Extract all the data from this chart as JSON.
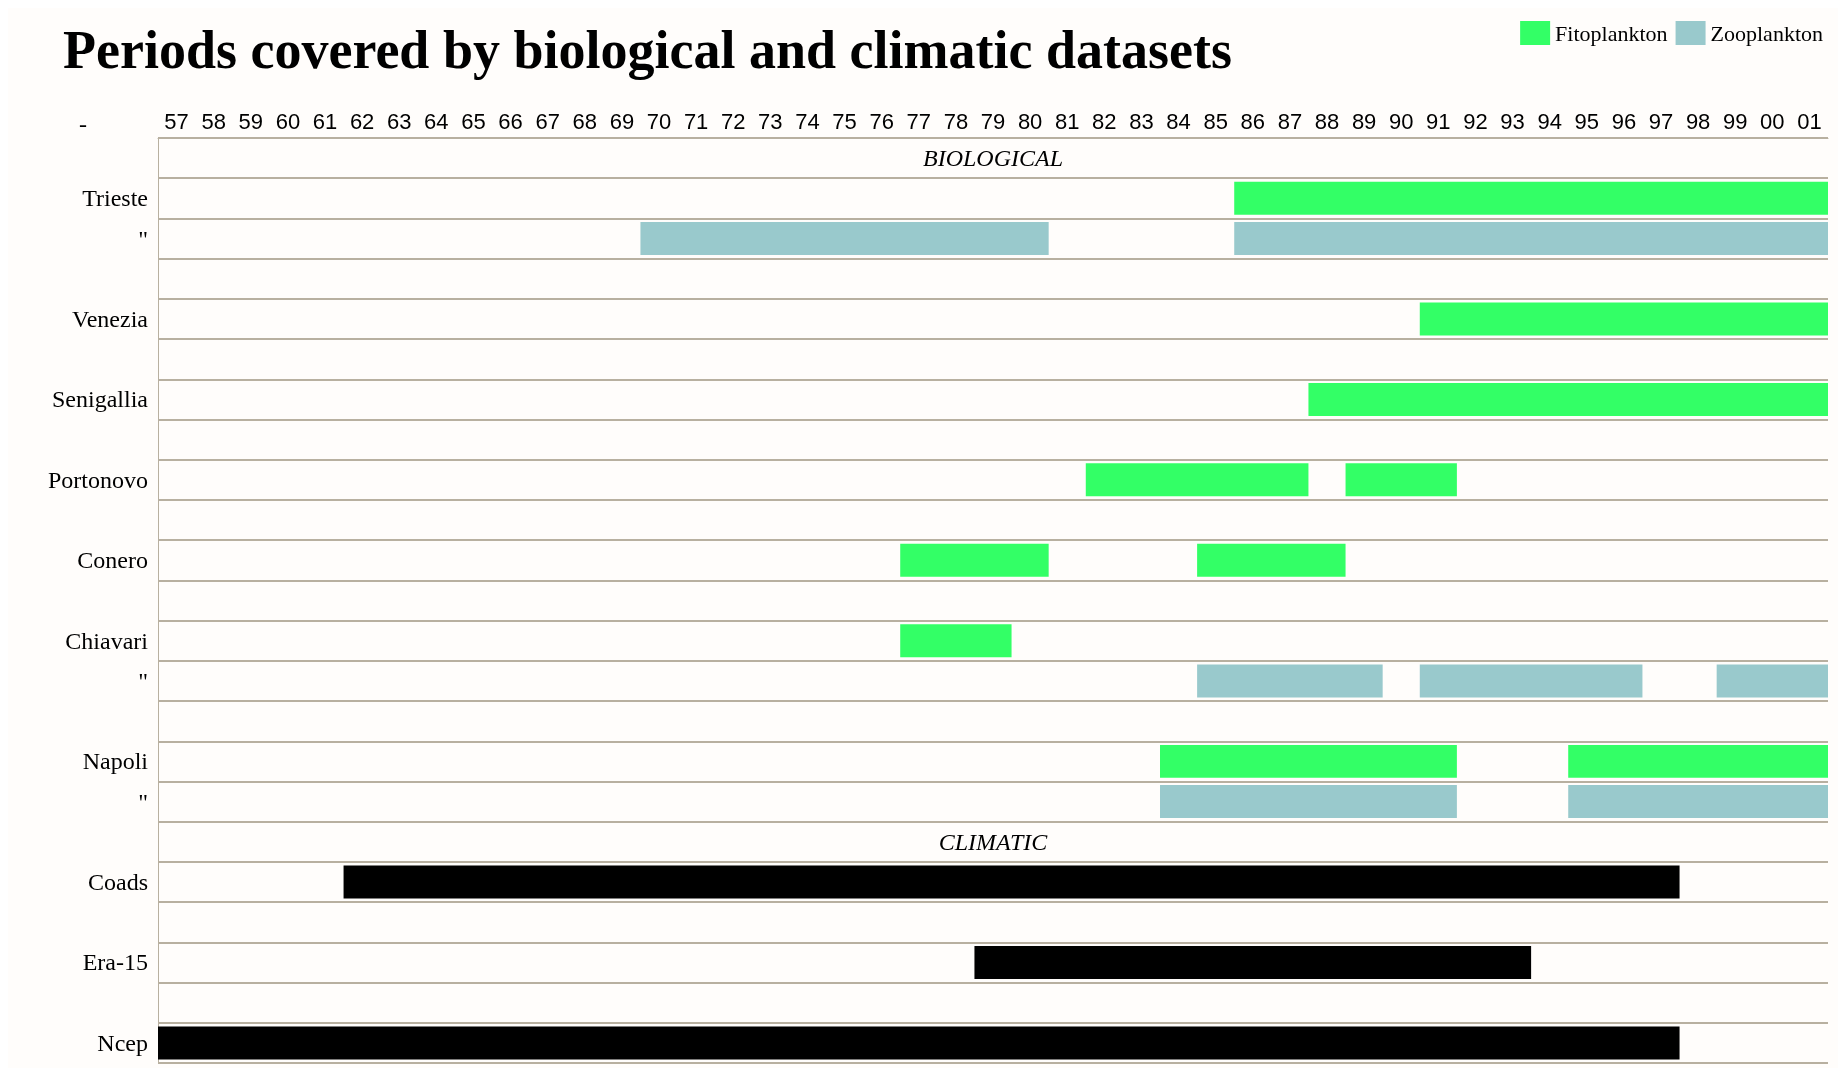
{
  "chart_data": {
    "type": "bar",
    "orientation": "horizontal",
    "title": "Periods covered by biological and climatic datasets",
    "ylabel": "-",
    "annotations": [
      "BIOLOGICAL",
      "CLIMATIC"
    ],
    "categories": [
      null,
      "Trieste",
      "\"",
      null,
      "Venezia",
      null,
      "Senigallia",
      null,
      "Portonovo",
      null,
      "Conero",
      null,
      "Chiavari",
      "\"",
      null,
      "Napoli",
      "\"",
      null,
      "Coads",
      null,
      "Era-15",
      null,
      "Ncep"
    ],
    "xlim": [
      1956.5,
      2001.5
    ],
    "xticks": [
      {
        "value": 1957,
        "label": "57"
      },
      {
        "value": 1958,
        "label": "58"
      },
      {
        "value": 1959,
        "label": "59"
      },
      {
        "value": 1960,
        "label": "60"
      },
      {
        "value": 1961,
        "label": "61"
      },
      {
        "value": 1962,
        "label": "62"
      },
      {
        "value": 1963,
        "label": "63"
      },
      {
        "value": 1964,
        "label": "64"
      },
      {
        "value": 1965,
        "label": "65"
      },
      {
        "value": 1966,
        "label": "66"
      },
      {
        "value": 1967,
        "label": "67"
      },
      {
        "value": 1968,
        "label": "68"
      },
      {
        "value": 1969,
        "label": "69"
      },
      {
        "value": 1970,
        "label": "70"
      },
      {
        "value": 1971,
        "label": "71"
      },
      {
        "value": 1972,
        "label": "72"
      },
      {
        "value": 1973,
        "label": "73"
      },
      {
        "value": 1974,
        "label": "74"
      },
      {
        "value": 1975,
        "label": "75"
      },
      {
        "value": 1976,
        "label": "76"
      },
      {
        "value": 1977,
        "label": "77"
      },
      {
        "value": 1978,
        "label": "78"
      },
      {
        "value": 1979,
        "label": "79"
      },
      {
        "value": 1980,
        "label": "80"
      },
      {
        "value": 1981,
        "label": "81"
      },
      {
        "value": 1982,
        "label": "82"
      },
      {
        "value": 1983,
        "label": "83"
      },
      {
        "value": 1984,
        "label": "84"
      },
      {
        "value": 1985,
        "label": "85"
      },
      {
        "value": 1986,
        "label": "86"
      },
      {
        "value": 1987,
        "label": "87"
      },
      {
        "value": 1988,
        "label": "88"
      },
      {
        "value": 1989,
        "label": "89"
      },
      {
        "value": 1990,
        "label": "90"
      },
      {
        "value": 1991,
        "label": "91"
      },
      {
        "value": 1992,
        "label": "92"
      },
      {
        "value": 1993,
        "label": "93"
      },
      {
        "value": 1994,
        "label": "94"
      },
      {
        "value": 1995,
        "label": "95"
      },
      {
        "value": 1996,
        "label": "96"
      },
      {
        "value": 1997,
        "label": "97"
      },
      {
        "value": 1998,
        "label": "98"
      },
      {
        "value": 1999,
        "label": "99"
      },
      {
        "value": 2000,
        "label": "00"
      },
      {
        "value": 2001,
        "label": "01"
      }
    ],
    "grid": "y",
    "legend": "top right",
    "series": [
      {
        "name": "Fitoplankton",
        "color": "#33ff66",
        "base": [
          null,
          1985.5,
          null,
          null,
          1990.5,
          null,
          1987.5,
          null,
          1981.5,
          null,
          1976.5,
          null,
          1976.5,
          null,
          null,
          1983.5,
          null,
          null,
          null,
          null,
          null,
          null,
          null
        ],
        "values": [
          null,
          16,
          null,
          null,
          11,
          null,
          14,
          null,
          6,
          null,
          4,
          null,
          3,
          null,
          null,
          8,
          null,
          null,
          null,
          null,
          null,
          null,
          null
        ]
      },
      {
        "color": "#33ff66",
        "base": [
          null,
          null,
          null,
          null,
          null,
          null,
          null,
          null,
          1988.5,
          null,
          1984.5,
          null,
          null,
          null,
          null,
          1994.5,
          null,
          null,
          null,
          null,
          null,
          null,
          null
        ],
        "values": [
          null,
          null,
          null,
          null,
          null,
          null,
          null,
          null,
          3,
          null,
          4,
          null,
          null,
          null,
          null,
          7,
          null,
          null,
          null,
          null,
          null,
          null,
          null
        ]
      },
      {
        "name": "Zooplankton",
        "color": "#99c9cc",
        "base": [
          null,
          null,
          1969.5,
          null,
          null,
          null,
          null,
          null,
          null,
          null,
          null,
          null,
          null,
          1984.5,
          null,
          null,
          1983.5,
          null,
          null,
          null,
          null,
          null,
          null
        ],
        "values": [
          null,
          null,
          11,
          null,
          null,
          null,
          null,
          null,
          null,
          null,
          null,
          null,
          null,
          5,
          null,
          null,
          8,
          null,
          null,
          null,
          null,
          null,
          null
        ]
      },
      {
        "color": "#99c9cc",
        "base": [
          null,
          null,
          1985.5,
          null,
          null,
          null,
          null,
          null,
          null,
          null,
          null,
          null,
          null,
          1990.5,
          null,
          null,
          1994.5,
          null,
          null,
          null,
          null,
          null,
          null
        ],
        "values": [
          null,
          null,
          16,
          null,
          null,
          null,
          null,
          null,
          null,
          null,
          null,
          null,
          null,
          6,
          null,
          null,
          7,
          null,
          null,
          null,
          null,
          null,
          null
        ]
      },
      {
        "color": "#99c9cc",
        "base": [
          null,
          null,
          null,
          null,
          null,
          null,
          null,
          null,
          null,
          null,
          null,
          null,
          null,
          1998.5,
          null,
          null,
          null,
          null,
          null,
          null,
          null,
          null,
          null
        ],
        "values": [
          null,
          null,
          null,
          null,
          null,
          null,
          null,
          null,
          null,
          null,
          null,
          null,
          null,
          3,
          null,
          null,
          null,
          null,
          null,
          null,
          null,
          null,
          null
        ]
      },
      {
        "color": "#000000",
        "base": [
          null,
          null,
          null,
          null,
          null,
          null,
          null,
          null,
          null,
          null,
          null,
          null,
          null,
          null,
          null,
          null,
          null,
          null,
          1961.5,
          null,
          1978.5,
          null,
          1956.5
        ],
        "values": [
          null,
          null,
          null,
          null,
          null,
          null,
          null,
          null,
          null,
          null,
          null,
          null,
          null,
          null,
          null,
          null,
          null,
          null,
          36,
          null,
          15,
          null,
          41
        ]
      }
    ]
  }
}
